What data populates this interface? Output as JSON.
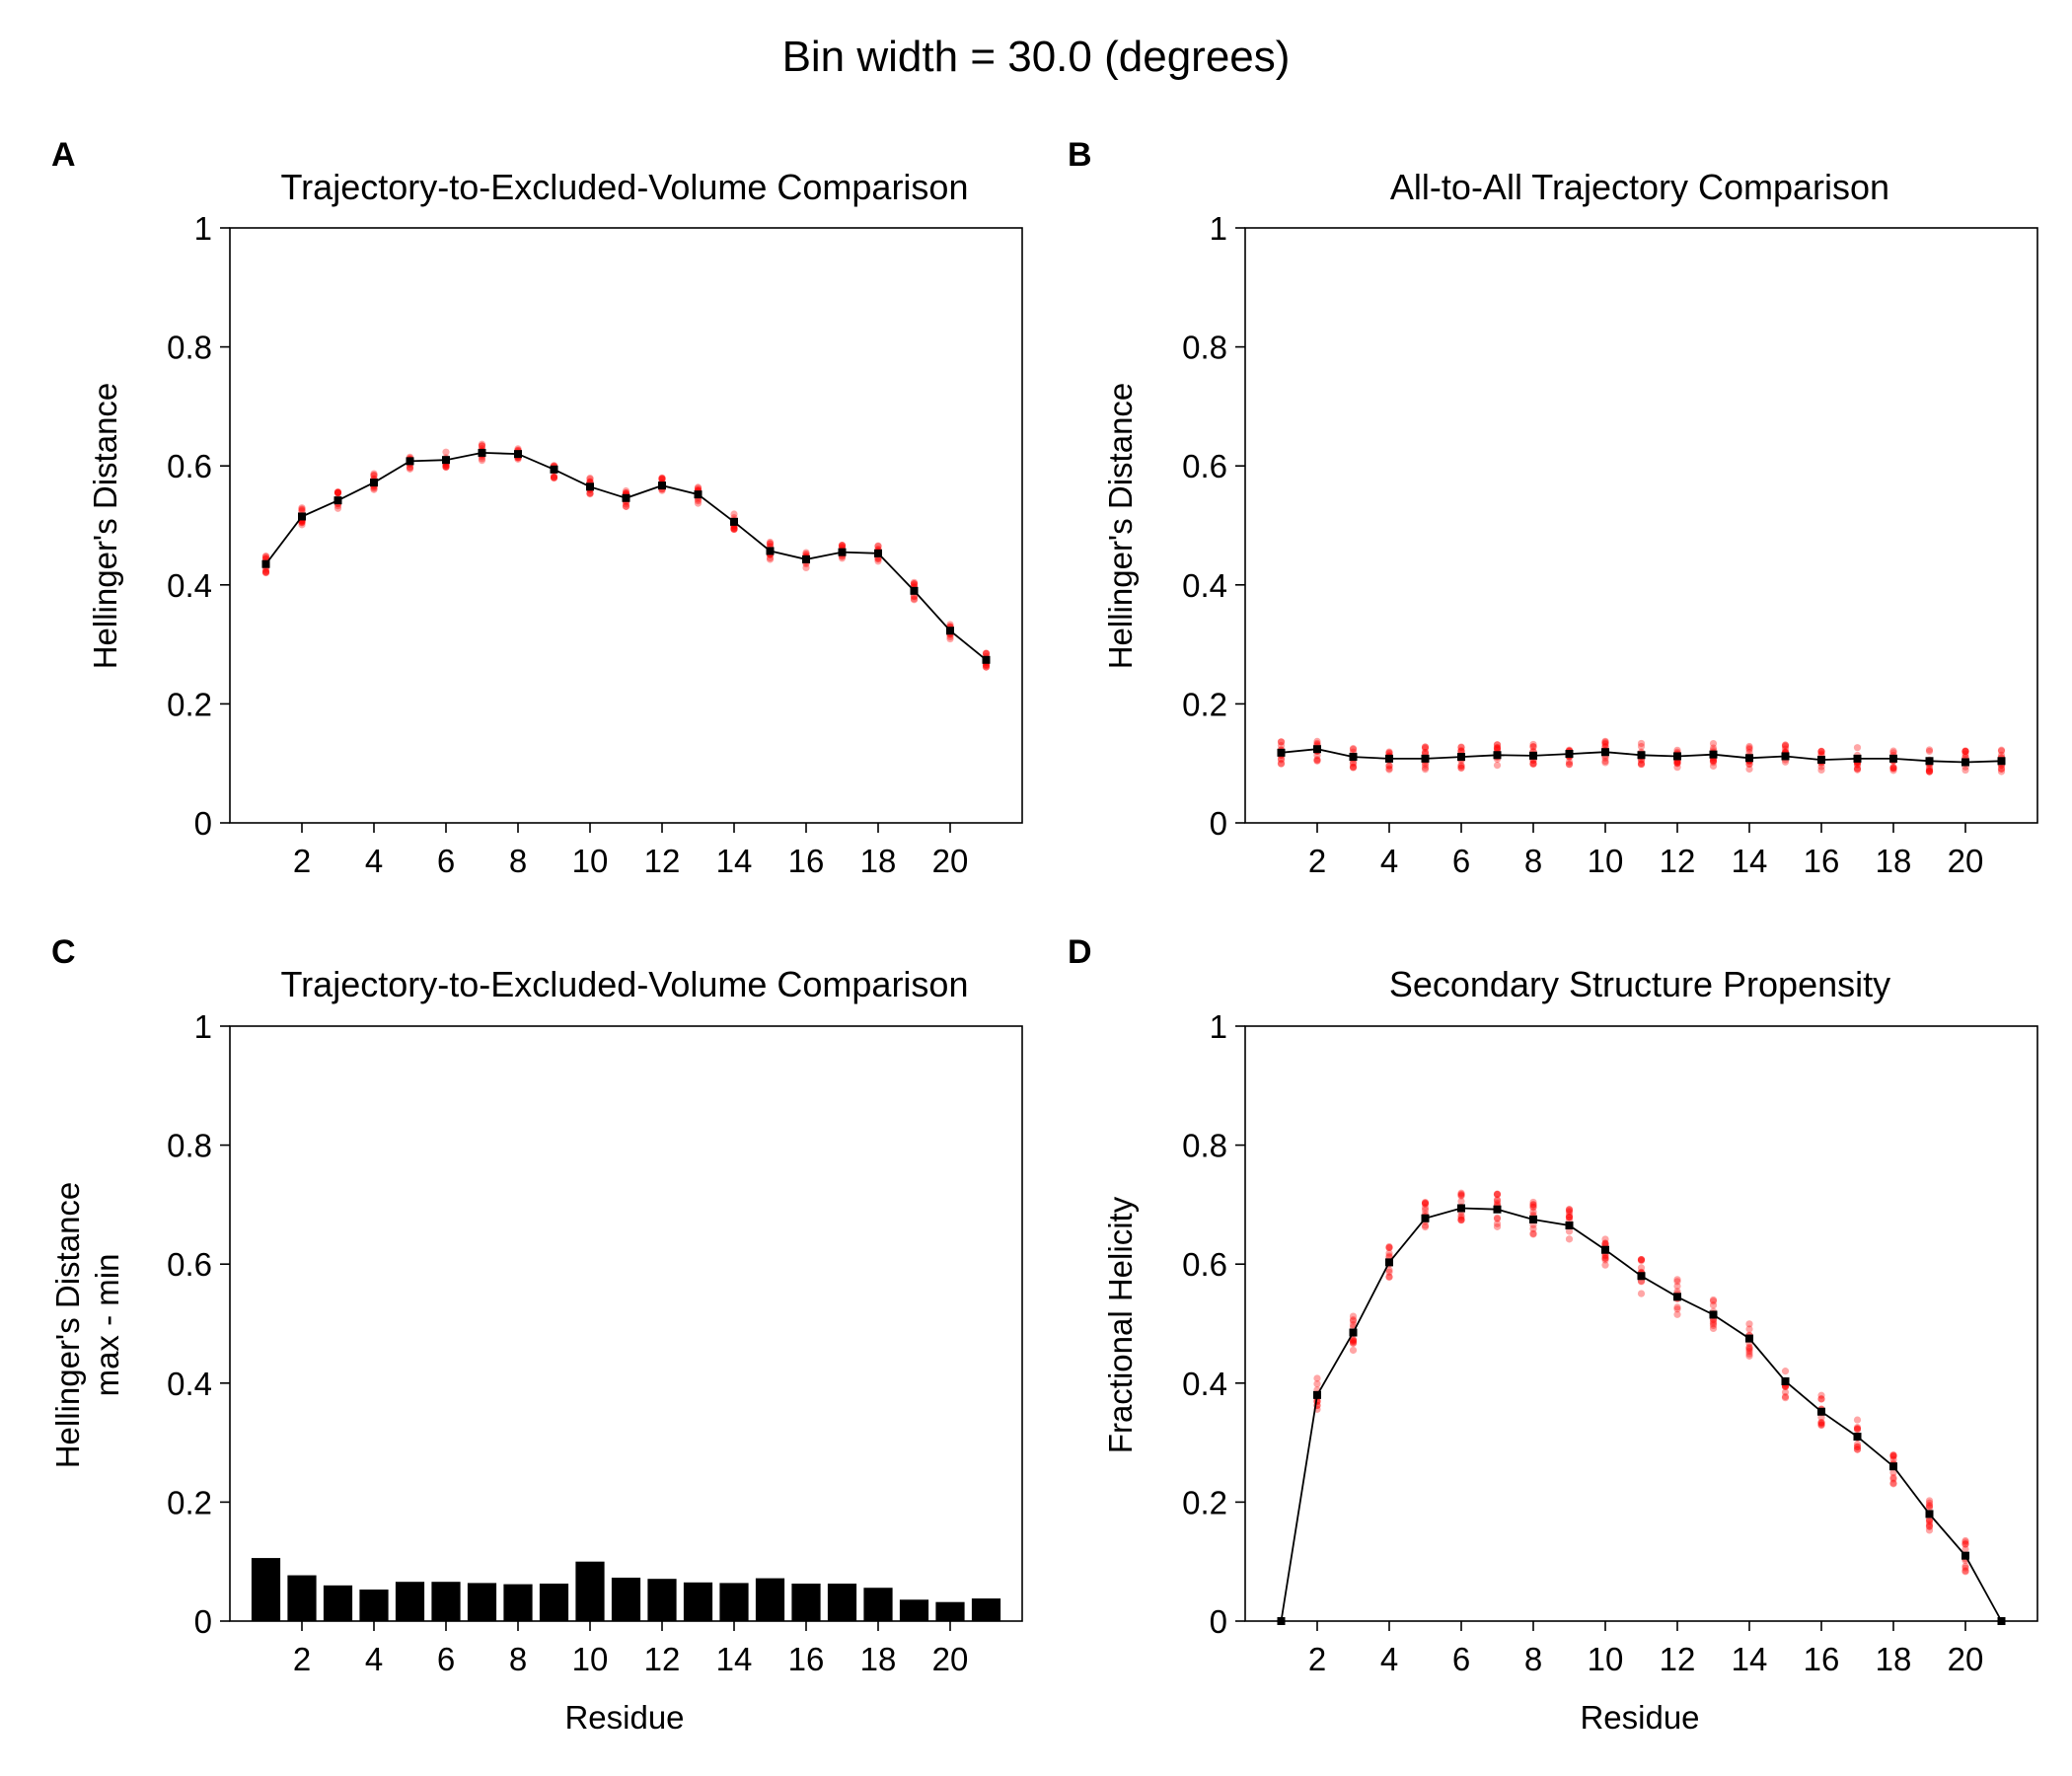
{
  "suptitle": "Bin width = 30.0 (degrees)",
  "colors": {
    "line": "#000000",
    "replicate_points": "#ff0000",
    "bars": "#000000"
  },
  "chart_data": [
    {
      "panel": "A",
      "type": "line",
      "title": "Trajectory-to-Excluded-Volume Comparison",
      "xlabel": "",
      "ylabel": "Hellinger's Distance",
      "ylim": [
        0,
        1
      ],
      "yticks": [
        "0",
        "0.2",
        "0.4",
        "0.6",
        "0.8",
        "1"
      ],
      "xticks": [
        2,
        4,
        6,
        8,
        10,
        12,
        14,
        16,
        18,
        20
      ],
      "x": [
        1,
        2,
        3,
        4,
        5,
        6,
        7,
        8,
        9,
        10,
        11,
        12,
        13,
        14,
        15,
        16,
        17,
        18,
        19,
        20,
        21
      ],
      "values": [
        0.435,
        0.515,
        0.542,
        0.572,
        0.608,
        0.61,
        0.622,
        0.62,
        0.594,
        0.565,
        0.546,
        0.567,
        0.552,
        0.506,
        0.457,
        0.443,
        0.455,
        0.453,
        0.39,
        0.323,
        0.274
      ],
      "spread": 0.03,
      "grid": false
    },
    {
      "panel": "B",
      "type": "line",
      "title": "All-to-All Trajectory Comparison",
      "xlabel": "",
      "ylabel": "Hellinger's Distance",
      "ylim": [
        0,
        1
      ],
      "yticks": [
        "0",
        "0.2",
        "0.4",
        "0.6",
        "0.8",
        "1"
      ],
      "xticks": [
        2,
        4,
        6,
        8,
        10,
        12,
        14,
        16,
        18,
        20
      ],
      "x": [
        1,
        2,
        3,
        4,
        5,
        6,
        7,
        8,
        9,
        10,
        11,
        12,
        13,
        14,
        15,
        16,
        17,
        18,
        19,
        20,
        21
      ],
      "values": [
        0.118,
        0.124,
        0.111,
        0.108,
        0.108,
        0.111,
        0.114,
        0.113,
        0.116,
        0.119,
        0.114,
        0.112,
        0.115,
        0.109,
        0.112,
        0.106,
        0.108,
        0.108,
        0.104,
        0.102,
        0.104
      ],
      "spread": 0.04,
      "grid": false
    },
    {
      "panel": "C",
      "type": "bar",
      "title": "Trajectory-to-Excluded-Volume Comparison",
      "xlabel": "Residue",
      "ylabel": "Hellinger's Distance\nmax - min",
      "ylim": [
        0,
        1
      ],
      "yticks": [
        "0",
        "0.2",
        "0.4",
        "0.6",
        "0.8",
        "1"
      ],
      "xticks": [
        2,
        4,
        6,
        8,
        10,
        12,
        14,
        16,
        18,
        20
      ],
      "x": [
        1,
        2,
        3,
        4,
        5,
        6,
        7,
        8,
        9,
        10,
        11,
        12,
        13,
        14,
        15,
        16,
        17,
        18,
        19,
        20,
        21
      ],
      "values": [
        0.106,
        0.077,
        0.06,
        0.053,
        0.066,
        0.066,
        0.064,
        0.062,
        0.063,
        0.1,
        0.073,
        0.071,
        0.065,
        0.064,
        0.072,
        0.063,
        0.063,
        0.056,
        0.036,
        0.032,
        0.038
      ],
      "grid": false
    },
    {
      "panel": "D",
      "type": "line",
      "title": "Secondary Structure Propensity",
      "xlabel": "Residue",
      "ylabel": "Fractional Helicity",
      "ylim": [
        0,
        1
      ],
      "yticks": [
        "0",
        "0.2",
        "0.4",
        "0.6",
        "0.8",
        "1"
      ],
      "xticks": [
        2,
        4,
        6,
        8,
        10,
        12,
        14,
        16,
        18,
        20
      ],
      "x": [
        1,
        2,
        3,
        4,
        5,
        6,
        7,
        8,
        9,
        10,
        11,
        12,
        13,
        14,
        15,
        16,
        17,
        18,
        19,
        20,
        21
      ],
      "values": [
        0.0,
        0.38,
        0.485,
        0.603,
        0.677,
        0.694,
        0.692,
        0.675,
        0.665,
        0.624,
        0.58,
        0.545,
        0.515,
        0.475,
        0.403,
        0.352,
        0.31,
        0.26,
        0.18,
        0.11,
        0.0
      ],
      "spread": 0.06,
      "grid": false
    }
  ]
}
